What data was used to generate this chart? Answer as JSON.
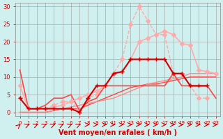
{
  "xlabel": "Vent moyen/en rafales ( km/h )",
  "ylabel": "",
  "bg_color": "#cff0ee",
  "grid_color": "#aaaaaa",
  "x_max": 23,
  "y_max": 30,
  "series": [
    {
      "x": [
        0,
        1,
        2,
        3,
        4,
        5,
        6,
        7,
        8,
        9,
        10,
        11,
        12,
        13,
        14,
        15,
        16,
        17,
        18,
        19,
        20,
        21,
        22,
        23
      ],
      "y": [
        4,
        1,
        1,
        1,
        1,
        1,
        1,
        0,
        4,
        7.5,
        7.5,
        11,
        11.5,
        15,
        15,
        15,
        15,
        15,
        11,
        11,
        7.5,
        7.5,
        7.5,
        null
      ],
      "color": "#cc0000",
      "marker": "+",
      "markersize": 5,
      "linewidth": 1.5,
      "zorder": 5
    },
    {
      "x": [
        0,
        1,
        2,
        3,
        4,
        5,
        6,
        7,
        8,
        9,
        10,
        11,
        12,
        13,
        14,
        15,
        16,
        17,
        18,
        19,
        20,
        21,
        22,
        23
      ],
      "y": [
        12,
        1,
        1,
        2,
        4,
        4,
        5,
        0.5,
        3,
        4,
        7.5,
        7.5,
        7.5,
        7.5,
        7.5,
        7.5,
        7.5,
        7.5,
        11,
        7.5,
        7.5,
        7.5,
        7.5,
        4
      ],
      "color": "#ff4444",
      "marker": null,
      "markersize": 3,
      "linewidth": 1.2,
      "zorder": 4
    },
    {
      "x": [
        0,
        1,
        2,
        3,
        4,
        5,
        6,
        7,
        8,
        9,
        10,
        11,
        12,
        13,
        14,
        15,
        16,
        17,
        18,
        19,
        20,
        21,
        22,
        23
      ],
      "y": [
        0,
        0,
        0,
        0,
        0.5,
        1,
        1,
        1,
        2,
        3,
        4,
        5,
        6,
        7,
        7.5,
        8,
        8,
        8.5,
        9,
        9.5,
        10,
        10,
        10,
        10
      ],
      "color": "#ff4444",
      "marker": null,
      "markersize": 3,
      "linewidth": 1.0,
      "zorder": 3
    },
    {
      "x": [
        0,
        1,
        2,
        3,
        4,
        5,
        6,
        7,
        8,
        9,
        10,
        11,
        12,
        13,
        14,
        15,
        16,
        17,
        18,
        19,
        20,
        21,
        22,
        23
      ],
      "y": [
        0,
        0,
        0,
        0,
        0.5,
        1,
        1.5,
        2,
        2.5,
        3,
        3.5,
        4,
        5,
        6,
        7,
        8,
        8.5,
        9,
        9.5,
        10,
        11,
        11,
        11,
        11
      ],
      "color": "#ff8888",
      "marker": null,
      "markersize": 3,
      "linewidth": 1.0,
      "zorder": 3
    },
    {
      "x": [
        0,
        1,
        2,
        3,
        4,
        5,
        6,
        7,
        8,
        9,
        10,
        11,
        12,
        13,
        14,
        15,
        16,
        17,
        18,
        19,
        20,
        21,
        22,
        23
      ],
      "y": [
        7.5,
        1,
        1,
        1,
        1.5,
        2,
        3,
        4,
        5,
        6,
        7.5,
        11,
        11.5,
        15,
        20,
        21,
        22,
        23,
        22,
        19.5,
        19,
        12,
        11.5,
        11
      ],
      "color": "#ffaaaa",
      "marker": "D",
      "markersize": 3,
      "linewidth": 1.2,
      "zorder": 4
    },
    {
      "x": [
        0,
        1,
        2,
        3,
        4,
        5,
        6,
        7,
        8,
        9,
        10,
        11,
        12,
        13,
        14,
        15,
        16,
        17,
        18,
        19,
        20,
        21,
        22,
        23
      ],
      "y": [
        4,
        1,
        1,
        1,
        2,
        3,
        3,
        0.5,
        4,
        5,
        7.5,
        11,
        15,
        25,
        30,
        26,
        22,
        22,
        11,
        11,
        7.5,
        4,
        4,
        null
      ],
      "color": "#ffaaaa",
      "marker": "D",
      "markersize": 3,
      "linewidth": 1.0,
      "linestyle": "--",
      "zorder": 3
    }
  ],
  "wind_arrows": [
    [
      0,
      155
    ],
    [
      1,
      135
    ],
    [
      2,
      135
    ],
    [
      3,
      135
    ],
    [
      4,
      135
    ],
    [
      5,
      135
    ],
    [
      6,
      135
    ],
    [
      7,
      135
    ],
    [
      8,
      90
    ],
    [
      9,
      90
    ],
    [
      10,
      90
    ],
    [
      11,
      90
    ],
    [
      12,
      90
    ],
    [
      13,
      90
    ],
    [
      14,
      90
    ],
    [
      15,
      90
    ],
    [
      16,
      90
    ],
    [
      17,
      90
    ],
    [
      18,
      90
    ],
    [
      19,
      90
    ],
    [
      20,
      90
    ],
    [
      21,
      90
    ],
    [
      22,
      90
    ],
    [
      23,
      90
    ]
  ]
}
